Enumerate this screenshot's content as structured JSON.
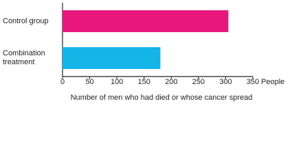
{
  "chart_data": {
    "type": "barh",
    "categories": [
      "Control group",
      "Combination treatment"
    ],
    "series": [
      {
        "values": [
          305,
          180
        ],
        "colors": [
          "#e8177d",
          "#15b5e8"
        ]
      }
    ],
    "xlim": [
      0,
      350
    ],
    "xticks": [
      0,
      50,
      100,
      150,
      200,
      250,
      300,
      350
    ],
    "x_unit": "People",
    "xlabel": "Number of men who had died or whose cancer spread"
  }
}
